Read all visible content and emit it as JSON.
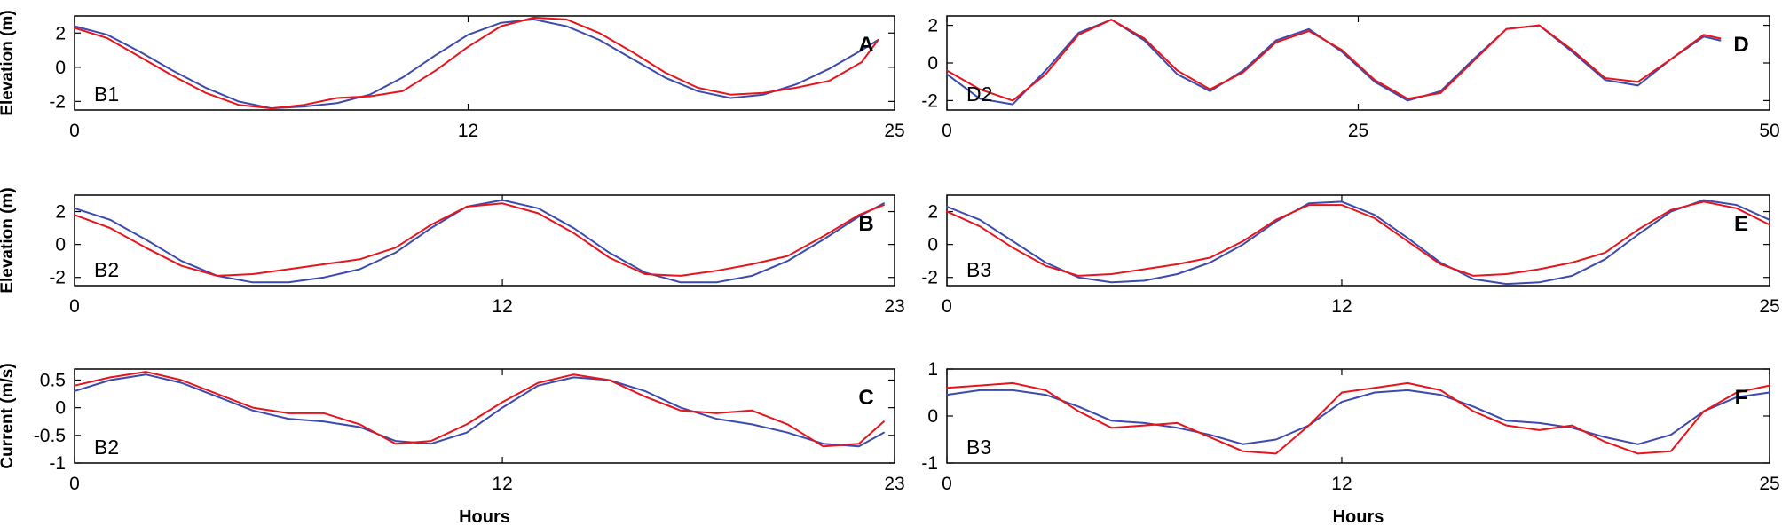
{
  "colors": {
    "modeled": "#3b4aae",
    "observed": "#e8141c",
    "axis": "#000000"
  },
  "chart_data": [
    {
      "type": "line",
      "panel": "A",
      "station": "B1",
      "ylabel": "Elevation (m)",
      "xlabel": "",
      "xlim": [
        0,
        25
      ],
      "ylim": [
        -2.5,
        3
      ],
      "xticks": [
        0,
        12,
        25
      ],
      "yticks": [
        -2,
        0,
        2
      ],
      "series": [
        {
          "color": "blue",
          "x": [
            0,
            1,
            2,
            3,
            4,
            5,
            6,
            7,
            8,
            9,
            10,
            11,
            12,
            13,
            14,
            15,
            16,
            17,
            18,
            19,
            20,
            21,
            22,
            23,
            24,
            24.5
          ],
          "y": [
            2.4,
            1.9,
            0.9,
            -0.2,
            -1.2,
            -2.0,
            -2.4,
            -2.3,
            -2.1,
            -1.6,
            -0.6,
            0.7,
            1.9,
            2.6,
            2.8,
            2.4,
            1.6,
            0.5,
            -0.6,
            -1.4,
            -1.8,
            -1.6,
            -1.0,
            -0.1,
            1.0,
            1.6
          ]
        },
        {
          "color": "red",
          "x": [
            0,
            1,
            2,
            3,
            4,
            5,
            6,
            7,
            8,
            9,
            10,
            11,
            12,
            13,
            14,
            15,
            16,
            17,
            18,
            19,
            20,
            21,
            22,
            23,
            24,
            24.5
          ],
          "y": [
            2.3,
            1.7,
            0.6,
            -0.5,
            -1.5,
            -2.2,
            -2.4,
            -2.2,
            -1.8,
            -1.7,
            -1.4,
            -0.2,
            1.2,
            2.4,
            2.9,
            2.8,
            2.0,
            0.9,
            -0.3,
            -1.2,
            -1.6,
            -1.5,
            -1.2,
            -0.8,
            0.3,
            1.6
          ]
        }
      ]
    },
    {
      "type": "line",
      "panel": "D",
      "station": "D2",
      "ylabel": "",
      "xlabel": "",
      "xlim": [
        0,
        50
      ],
      "ylim": [
        -2.5,
        2.5
      ],
      "xticks": [
        0,
        25,
        50
      ],
      "yticks": [
        -2,
        0,
        2
      ],
      "series": [
        {
          "color": "blue",
          "x": [
            0,
            2,
            4,
            6,
            8,
            10,
            12,
            14,
            16,
            18,
            20,
            22,
            24,
            26,
            28,
            30,
            32,
            34,
            36,
            38,
            40,
            42,
            44,
            46,
            47
          ],
          "y": [
            -0.6,
            -1.9,
            -2.2,
            -0.4,
            1.6,
            2.3,
            1.2,
            -0.6,
            -1.5,
            -0.4,
            1.2,
            1.8,
            0.6,
            -1.0,
            -2.0,
            -1.5,
            0.2,
            1.8,
            2.0,
            0.6,
            -0.9,
            -1.2,
            0.2,
            1.4,
            1.2
          ]
        },
        {
          "color": "red",
          "x": [
            0,
            2,
            4,
            6,
            8,
            10,
            12,
            14,
            16,
            18,
            20,
            22,
            24,
            26,
            28,
            30,
            32,
            34,
            36,
            38,
            40,
            42,
            44,
            46,
            47
          ],
          "y": [
            -0.4,
            -1.4,
            -2.0,
            -0.6,
            1.5,
            2.3,
            1.3,
            -0.4,
            -1.4,
            -0.5,
            1.1,
            1.7,
            0.7,
            -0.9,
            -1.9,
            -1.6,
            0.1,
            1.8,
            2.0,
            0.7,
            -0.8,
            -1.0,
            0.2,
            1.5,
            1.3
          ]
        }
      ]
    },
    {
      "type": "line",
      "panel": "B",
      "station": "B2",
      "ylabel": "Elevation (m)",
      "xlabel": "",
      "xlim": [
        0,
        23
      ],
      "ylim": [
        -2.5,
        3
      ],
      "xticks": [
        0,
        12,
        23
      ],
      "yticks": [
        -2,
        0,
        2
      ],
      "series": [
        {
          "color": "blue",
          "x": [
            0,
            1,
            2,
            3,
            4,
            5,
            6,
            7,
            8,
            9,
            10,
            11,
            12,
            13,
            14,
            15,
            16,
            17,
            18,
            19,
            20,
            21,
            22,
            22.7
          ],
          "y": [
            2.2,
            1.5,
            0.3,
            -1.0,
            -1.9,
            -2.3,
            -2.3,
            -2.0,
            -1.5,
            -0.5,
            1.0,
            2.3,
            2.7,
            2.2,
            1.0,
            -0.5,
            -1.7,
            -2.3,
            -2.3,
            -1.9,
            -1.0,
            0.3,
            1.7,
            2.5
          ]
        },
        {
          "color": "red",
          "x": [
            0,
            1,
            2,
            3,
            4,
            5,
            6,
            7,
            8,
            9,
            10,
            11,
            12,
            13,
            14,
            15,
            16,
            17,
            18,
            19,
            20,
            21,
            22,
            22.7
          ],
          "y": [
            1.8,
            1.0,
            -0.2,
            -1.3,
            -1.9,
            -1.8,
            -1.5,
            -1.2,
            -0.9,
            -0.2,
            1.2,
            2.3,
            2.5,
            1.9,
            0.7,
            -0.8,
            -1.8,
            -1.9,
            -1.6,
            -1.2,
            -0.7,
            0.5,
            1.8,
            2.4
          ]
        }
      ]
    },
    {
      "type": "line",
      "panel": "E",
      "station": "B3",
      "ylabel": "",
      "xlabel": "",
      "xlim": [
        0,
        25
      ],
      "ylim": [
        -2.5,
        3
      ],
      "xticks": [
        0,
        12,
        25
      ],
      "yticks": [
        -2,
        0,
        2
      ],
      "series": [
        {
          "color": "blue",
          "x": [
            0,
            1,
            2,
            3,
            4,
            5,
            6,
            7,
            8,
            9,
            10,
            11,
            12,
            13,
            14,
            15,
            16,
            17,
            18,
            19,
            20,
            21,
            22,
            23,
            24,
            25
          ],
          "y": [
            2.3,
            1.5,
            0.2,
            -1.1,
            -2.0,
            -2.3,
            -2.2,
            -1.8,
            -1.1,
            0.0,
            1.4,
            2.5,
            2.6,
            1.8,
            0.4,
            -1.1,
            -2.1,
            -2.4,
            -2.3,
            -1.9,
            -0.9,
            0.6,
            2.0,
            2.7,
            2.4,
            1.5
          ]
        },
        {
          "color": "red",
          "x": [
            0,
            1,
            2,
            3,
            4,
            5,
            6,
            7,
            8,
            9,
            10,
            11,
            12,
            13,
            14,
            15,
            16,
            17,
            18,
            19,
            20,
            21,
            22,
            23,
            24,
            25
          ],
          "y": [
            2.0,
            1.1,
            -0.2,
            -1.3,
            -1.9,
            -1.8,
            -1.5,
            -1.2,
            -0.8,
            0.2,
            1.5,
            2.4,
            2.4,
            1.6,
            0.2,
            -1.2,
            -1.9,
            -1.8,
            -1.5,
            -1.1,
            -0.5,
            0.9,
            2.1,
            2.6,
            2.2,
            1.2
          ]
        }
      ]
    },
    {
      "type": "line",
      "panel": "C",
      "station": "B2",
      "ylabel": "Current (m/s)",
      "xlabel": "Hours",
      "xlim": [
        0,
        23
      ],
      "ylim": [
        -1,
        0.7
      ],
      "xticks": [
        0,
        12,
        23
      ],
      "yticks": [
        -1,
        -0.5,
        0,
        0.5
      ],
      "series": [
        {
          "color": "blue",
          "x": [
            0,
            1,
            2,
            3,
            4,
            5,
            6,
            7,
            8,
            9,
            10,
            11,
            12,
            13,
            14,
            15,
            16,
            17,
            18,
            19,
            20,
            21,
            22,
            22.7
          ],
          "y": [
            0.3,
            0.5,
            0.6,
            0.45,
            0.2,
            -0.05,
            -0.2,
            -0.25,
            -0.35,
            -0.6,
            -0.65,
            -0.45,
            0.0,
            0.4,
            0.55,
            0.5,
            0.3,
            0.0,
            -0.2,
            -0.3,
            -0.45,
            -0.65,
            -0.7,
            -0.45
          ]
        },
        {
          "color": "red",
          "x": [
            0,
            1,
            2,
            3,
            4,
            5,
            6,
            7,
            8,
            9,
            10,
            11,
            12,
            13,
            14,
            15,
            16,
            17,
            18,
            19,
            20,
            21,
            22,
            22.7
          ],
          "y": [
            0.4,
            0.55,
            0.65,
            0.5,
            0.25,
            0.0,
            -0.1,
            -0.1,
            -0.3,
            -0.65,
            -0.6,
            -0.3,
            0.1,
            0.45,
            0.6,
            0.5,
            0.2,
            -0.05,
            -0.1,
            -0.05,
            -0.3,
            -0.7,
            -0.65,
            -0.25
          ]
        }
      ]
    },
    {
      "type": "line",
      "panel": "F",
      "station": "B3",
      "ylabel": "",
      "xlabel": "Hours",
      "xlim": [
        0,
        25
      ],
      "ylim": [
        -1,
        1
      ],
      "xticks": [
        0,
        12,
        25
      ],
      "yticks": [
        -1,
        0,
        1
      ],
      "series": [
        {
          "color": "blue",
          "x": [
            0,
            1,
            2,
            3,
            4,
            5,
            6,
            7,
            8,
            9,
            10,
            11,
            12,
            13,
            14,
            15,
            16,
            17,
            18,
            19,
            20,
            21,
            22,
            23,
            24,
            25
          ],
          "y": [
            0.45,
            0.55,
            0.55,
            0.45,
            0.2,
            -0.1,
            -0.15,
            -0.25,
            -0.4,
            -0.6,
            -0.5,
            -0.2,
            0.3,
            0.5,
            0.55,
            0.45,
            0.2,
            -0.1,
            -0.15,
            -0.25,
            -0.45,
            -0.6,
            -0.4,
            0.1,
            0.4,
            0.5
          ]
        },
        {
          "color": "red",
          "x": [
            0,
            1,
            2,
            3,
            4,
            5,
            6,
            7,
            8,
            9,
            10,
            11,
            12,
            13,
            14,
            15,
            16,
            17,
            18,
            19,
            20,
            21,
            22,
            23,
            24,
            25
          ],
          "y": [
            0.6,
            0.65,
            0.7,
            0.55,
            0.1,
            -0.25,
            -0.2,
            -0.15,
            -0.45,
            -0.75,
            -0.8,
            -0.2,
            0.5,
            0.6,
            0.7,
            0.55,
            0.1,
            -0.2,
            -0.3,
            -0.2,
            -0.55,
            -0.8,
            -0.75,
            0.1,
            0.5,
            0.65
          ]
        }
      ]
    }
  ]
}
